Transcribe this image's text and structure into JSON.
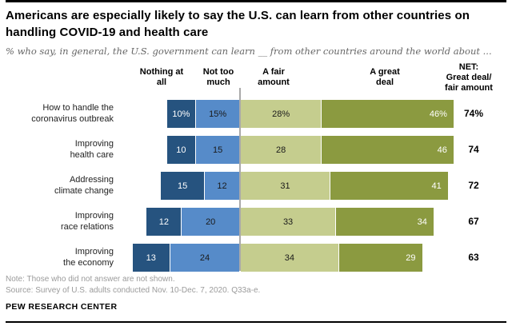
{
  "title": "Americans are especially likely to say the U.S. can learn from other countries on\nhandling COVID-19 and health care",
  "subtitle": "% who say, in general, the U.S. government can learn __ from other countries around the world about ...",
  "chart_data": {
    "type": "bar",
    "variant": "horizontal-diverging-stacked",
    "categories": [
      "How to handle the\ncoronavirus outbreak",
      "Improving\nhealth care",
      "Addressing\nclimate change",
      "Improving\nrace relations",
      "Improving\nthe economy"
    ],
    "column_headers": [
      "Nothing at\nall",
      "Not too\nmuch",
      "A fair\namount",
      "A great\ndeal",
      "NET:\nGreat deal/\nfair amount"
    ],
    "series": [
      {
        "name": "Nothing at all",
        "color": "#26537F",
        "text_color": "#ffffff",
        "values": [
          10,
          10,
          15,
          12,
          13
        ]
      },
      {
        "name": "Not too much",
        "color": "#568BC9",
        "text_color": "#1a1a1a",
        "values": [
          15,
          15,
          12,
          20,
          24
        ]
      },
      {
        "name": "A fair amount",
        "color": "#C5CD8E",
        "text_color": "#1a1a1a",
        "values": [
          28,
          28,
          31,
          33,
          34
        ]
      },
      {
        "name": "A great deal",
        "color": "#8B9A40",
        "text_color": "#ffffff",
        "values": [
          46,
          46,
          41,
          34,
          29
        ]
      }
    ],
    "net_values": [
      74,
      74,
      72,
      67,
      63
    ],
    "first_row_percent_suffix": true,
    "layout_hints": {
      "legend_position": "top-column-headers",
      "grid": false,
      "divider_color": "#aaaaaa"
    }
  },
  "footer": {
    "note": "Note: Those who did not answer are not shown.",
    "source": "Source: Survey of U.S. adults conducted Nov. 10-Dec. 7, 2020. Q33a-e.",
    "brand": "PEW RESEARCH CENTER"
  }
}
